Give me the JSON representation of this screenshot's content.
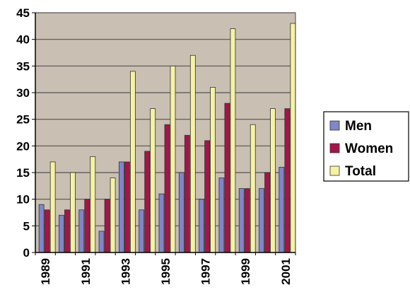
{
  "chart_data": {
    "type": "bar",
    "categories": [
      "1989",
      "1990",
      "1991",
      "1992",
      "1993",
      "1994",
      "1995",
      "1996",
      "1997",
      "1998",
      "1999",
      "2000",
      "2001"
    ],
    "tick_labels": [
      "1989",
      "1991",
      "1993",
      "1995",
      "1997",
      "1999",
      "2001"
    ],
    "series": [
      {
        "name": "Men",
        "values": [
          9,
          7,
          8,
          4,
          17,
          8,
          11,
          15,
          10,
          14,
          12,
          12,
          16
        ]
      },
      {
        "name": "Women",
        "values": [
          8,
          8,
          10,
          10,
          17,
          19,
          24,
          22,
          21,
          28,
          12,
          15,
          27
        ]
      },
      {
        "name": "Total",
        "values": [
          17,
          15,
          18,
          14,
          34,
          27,
          35,
          37,
          31,
          42,
          24,
          27,
          43
        ]
      }
    ],
    "ylim": [
      0,
      45
    ],
    "y_ticks": [
      0,
      5,
      10,
      15,
      20,
      25,
      30,
      35,
      40,
      45
    ],
    "grid": true,
    "legend_position": "right",
    "colors": {
      "plot_background": "#c9bfb2",
      "gridline": "#555555",
      "Men": "#7f86c9",
      "Women": "#a3154a",
      "Total": "#f5f2a4"
    }
  }
}
